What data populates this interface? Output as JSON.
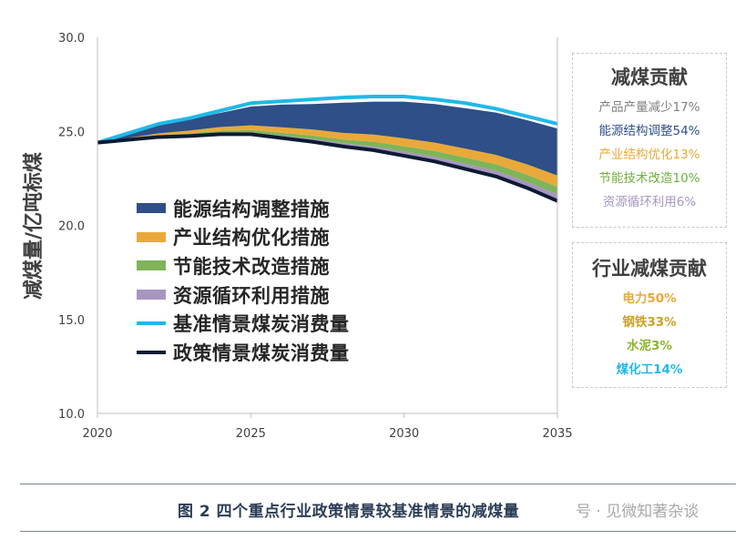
{
  "chart_data": {
    "type": "area",
    "ylabel": "减煤量/亿吨标煤",
    "xlabel": "",
    "x": [
      2020,
      2021,
      2022,
      2023,
      2024,
      2025,
      2026,
      2027,
      2028,
      2029,
      2030,
      2031,
      2032,
      2033,
      2034,
      2035
    ],
    "xticks": [
      2020,
      2025,
      2030,
      2035
    ],
    "yticks": [
      10.0,
      15.0,
      20.0,
      25.0,
      30.0
    ],
    "ylim": [
      10,
      30
    ],
    "xlim": [
      2020,
      2035
    ],
    "grid": false,
    "baseline": {
      "name": "基准情景煤炭消费量",
      "color": "#21b8e8",
      "values": [
        24.4,
        24.9,
        25.4,
        25.7,
        26.1,
        26.5,
        26.6,
        26.7,
        26.8,
        26.85,
        26.85,
        26.7,
        26.5,
        26.2,
        25.8,
        25.4
      ]
    },
    "policy": {
      "name": "政策情景煤炭消费量",
      "color": "#0d1a33",
      "values": [
        24.4,
        24.55,
        24.7,
        24.75,
        24.85,
        24.85,
        24.65,
        24.45,
        24.2,
        24.0,
        23.7,
        23.4,
        23.0,
        22.6,
        22.0,
        21.3
      ]
    },
    "series": [
      {
        "name": "能源结构调整措施",
        "color": "#2e4f87",
        "values": [
          0,
          0.2,
          0.5,
          0.6,
          0.75,
          1.0,
          1.2,
          1.35,
          1.6,
          1.75,
          1.95,
          2.05,
          2.15,
          2.25,
          2.35,
          2.5
        ]
      },
      {
        "name": "产业结构优化措施",
        "color": "#e9a93a",
        "values": [
          0,
          0.05,
          0.1,
          0.15,
          0.2,
          0.25,
          0.3,
          0.32,
          0.35,
          0.38,
          0.42,
          0.45,
          0.47,
          0.5,
          0.55,
          0.6
        ]
      },
      {
        "name": "节能技术改造措施",
        "color": "#7fb458",
        "values": [
          0,
          0.03,
          0.06,
          0.08,
          0.1,
          0.12,
          0.15,
          0.18,
          0.2,
          0.25,
          0.28,
          0.3,
          0.33,
          0.35,
          0.38,
          0.4
        ]
      },
      {
        "name": "资源循环利用措施",
        "color": "#a696c0",
        "values": [
          0,
          0.02,
          0.04,
          0.06,
          0.08,
          0.1,
          0.12,
          0.15,
          0.17,
          0.2,
          0.23,
          0.25,
          0.28,
          0.3,
          0.32,
          0.35
        ]
      }
    ],
    "xtick_labels": [
      "2020",
      "2025",
      "2030",
      "2035"
    ],
    "ytick_labels": [
      "10.0",
      "15.0",
      "20.0",
      "25.0",
      "30.0"
    ]
  },
  "legend": [
    {
      "label": "能源结构调整措施",
      "kind": "area",
      "color": "#2e4f87"
    },
    {
      "label": "产业结构优化措施",
      "kind": "area",
      "color": "#e9a93a"
    },
    {
      "label": "节能技术改造措施",
      "kind": "area",
      "color": "#7fb458"
    },
    {
      "label": "资源循环利用措施",
      "kind": "area",
      "color": "#a696c0"
    },
    {
      "label": "基准情景煤炭消费量",
      "kind": "line",
      "color": "#21b8e8"
    },
    {
      "label": "政策情景煤炭消费量",
      "kind": "line",
      "color": "#0d1a33"
    }
  ],
  "contribution_box": {
    "title": "减煤贡献",
    "items": [
      {
        "text": "产品产量减少17%",
        "color": "#7f7f7f"
      },
      {
        "text": "能源结构调整54%",
        "color": "#2e4f87"
      },
      {
        "text": "产业结构优化13%",
        "color": "#e9a93a"
      },
      {
        "text": "节能技术改造10%",
        "color": "#6fae3e"
      },
      {
        "text": "资源循环利用6%",
        "color": "#a696c0"
      }
    ]
  },
  "industry_box": {
    "title": "行业减煤贡献",
    "items": [
      {
        "text": "电力50%",
        "color": "#e9a93a"
      },
      {
        "text": "钢铁33%",
        "color": "#c9a227"
      },
      {
        "text": "水泥3%",
        "color": "#8ab52d"
      },
      {
        "text": "煤化工14%",
        "color": "#21b8e8"
      }
    ]
  },
  "caption": "图 2  四个重点行业政策情景较基准情景的减煤量",
  "watermark": "号 · 见微知著杂谈"
}
